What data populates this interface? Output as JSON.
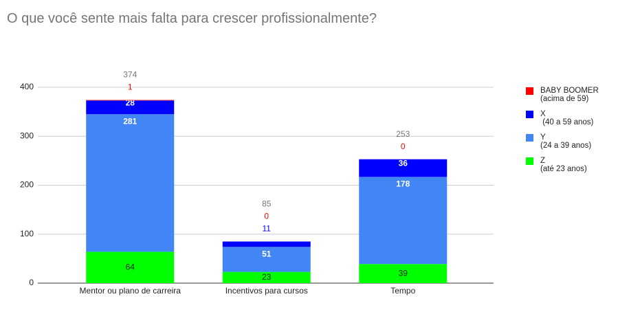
{
  "chart_data": {
    "type": "stacked_bar",
    "title": "O que você sente mais falta para crescer profissionalmente?",
    "categories": [
      "Mentor ou plano de carreira",
      "Incentivos para cursos",
      "Tempo"
    ],
    "series": [
      {
        "name": "Z",
        "age_range": "(até 23 anos)",
        "color": "#00ff00",
        "values": [
          64,
          23,
          39
        ]
      },
      {
        "name": "Y",
        "age_range": "(24 a 39 anos)",
        "color": "#4285f4",
        "values": [
          281,
          51,
          178
        ]
      },
      {
        "name": "X",
        "age_range": " (40 a 59 anos)",
        "color": "#0000ff",
        "values": [
          28,
          11,
          36
        ]
      },
      {
        "name": "BABY BOOMER",
        "age_range": "(acima de 59)",
        "color": "#ff0000",
        "values": [
          1,
          0,
          0
        ]
      }
    ],
    "totals": [
      374,
      85,
      253
    ],
    "ylim": [
      0,
      400
    ],
    "yticks": [
      0,
      100,
      200,
      300,
      400
    ],
    "grid": true,
    "legend": "right"
  }
}
